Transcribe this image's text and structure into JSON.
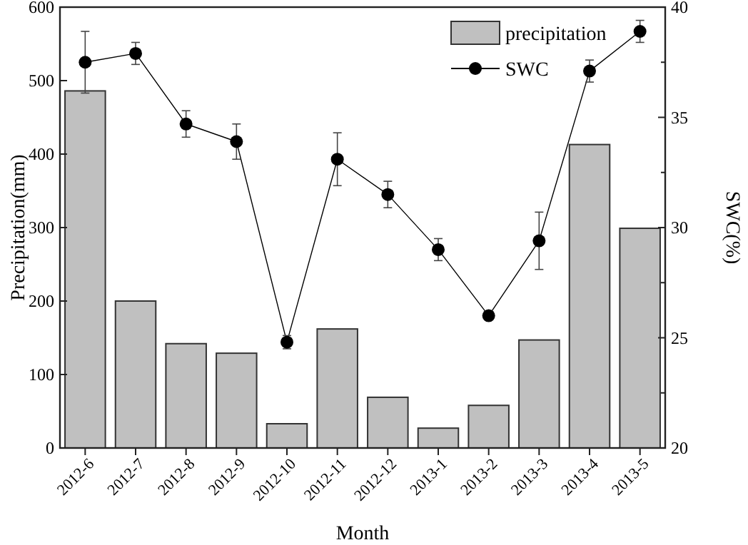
{
  "chart_data": {
    "type": "bar",
    "categories": [
      "2012-6",
      "2012-7",
      "2012-8",
      "2012-9",
      "2012-10",
      "2012-11",
      "2012-12",
      "2013-1",
      "2013-2",
      "2013-3",
      "2013-4",
      "2013-5"
    ],
    "xlabel": "Month",
    "ylabel": "Precipitation(mm)",
    "y2label": "SWC(%)",
    "series": [
      {
        "name": "precipitation",
        "color": "#c0c0c0",
        "values": [
          486,
          200,
          142,
          129,
          33,
          162,
          69,
          27,
          58,
          147,
          413,
          299
        ]
      },
      {
        "name": "SWC",
        "type": "line",
        "axis": "y2",
        "color": "#000000",
        "marker": "circle",
        "line_style": "solid",
        "values": [
          37.5,
          37.9,
          34.7,
          33.9,
          24.8,
          33.1,
          31.5,
          29.0,
          26.0,
          29.4,
          37.1,
          38.9
        ],
        "errors": [
          1.4,
          0.5,
          0.6,
          0.8,
          0.3,
          1.2,
          0.6,
          0.5,
          null,
          1.3,
          0.5,
          0.5
        ]
      }
    ],
    "ylim": [
      0,
      600
    ],
    "yticks": [
      0,
      100,
      200,
      300,
      400,
      500,
      600
    ],
    "y2lim": [
      20,
      40
    ],
    "y2ticks": [
      20,
      {
        "value": 22.5,
        "label": null
      },
      25,
      {
        "value": 27.5,
        "label": null
      },
      30,
      {
        "value": 32.5,
        "label": null
      },
      35,
      {
        "value": 37.5,
        "label": null
      },
      40
    ],
    "legend": "top right",
    "grid": false
  }
}
